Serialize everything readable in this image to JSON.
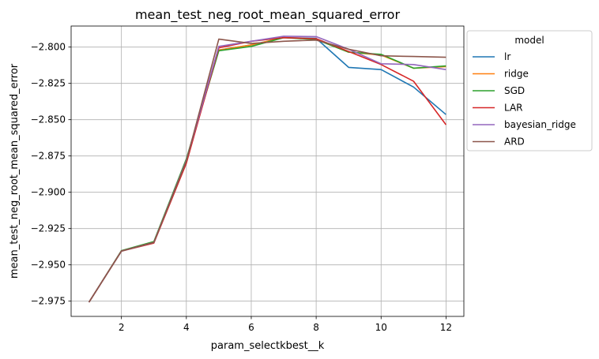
{
  "chart_data": {
    "type": "line",
    "title": "mean_test_neg_root_mean_squared_error",
    "xlabel": "param_selectkbest__k",
    "ylabel": "mean_test_neg_root_mean_squared_error",
    "x": [
      1,
      2,
      3,
      4,
      5,
      6,
      7,
      8,
      9,
      10,
      11,
      12
    ],
    "xlim": [
      0.45,
      12.55
    ],
    "ylim": [
      -2.9855,
      -2.7855
    ],
    "xticks": [
      2,
      4,
      6,
      8,
      10,
      12
    ],
    "xtick_labels": [
      "2",
      "4",
      "6",
      "8",
      "10",
      "12"
    ],
    "yticks": [
      -2.975,
      -2.95,
      -2.925,
      -2.9,
      -2.875,
      -2.85,
      -2.825,
      -2.8
    ],
    "ytick_labels": [
      "−2.975",
      "−2.950",
      "−2.925",
      "−2.900",
      "−2.875",
      "−2.850",
      "−2.825",
      "−2.800"
    ],
    "grid": true,
    "legend": {
      "title": "model",
      "position": "outside-right-top"
    },
    "series": [
      {
        "name": "lr",
        "color": "#1f77b4",
        "values": [
          -2.9757,
          -2.9405,
          -2.9345,
          -2.8775,
          -2.802,
          -2.7985,
          -2.7935,
          -2.794,
          -2.814,
          -2.8155,
          -2.8275,
          -2.8465
        ]
      },
      {
        "name": "ridge",
        "color": "#ff7f0e",
        "values": [
          -2.9757,
          -2.9405,
          -2.9345,
          -2.8775,
          -2.802,
          -2.7985,
          -2.7935,
          -2.7945,
          -2.8035,
          -2.8055,
          -2.8145,
          -2.8135
        ]
      },
      {
        "name": "SGD",
        "color": "#2ca02c",
        "values": [
          -2.9757,
          -2.9402,
          -2.934,
          -2.877,
          -2.8025,
          -2.7995,
          -2.7935,
          -2.7948,
          -2.8035,
          -2.805,
          -2.8145,
          -2.813
        ]
      },
      {
        "name": "LAR",
        "color": "#d62728",
        "values": [
          -2.9757,
          -2.9405,
          -2.935,
          -2.88,
          -2.8005,
          -2.796,
          -2.7935,
          -2.7942,
          -2.803,
          -2.812,
          -2.8235,
          -2.8535
        ]
      },
      {
        "name": "bayesian_ridge",
        "color": "#9467bd",
        "values": [
          -2.9757,
          -2.9405,
          -2.9345,
          -2.878,
          -2.7995,
          -2.796,
          -2.7925,
          -2.7928,
          -2.8015,
          -2.8115,
          -2.812,
          -2.8155
        ]
      },
      {
        "name": "ARD",
        "color": "#8c564b",
        "values": [
          -2.9757,
          -2.9405,
          -2.9345,
          -2.8785,
          -2.7945,
          -2.7975,
          -2.796,
          -2.7952,
          -2.8015,
          -2.806,
          -2.8065,
          -2.807
        ]
      }
    ]
  }
}
